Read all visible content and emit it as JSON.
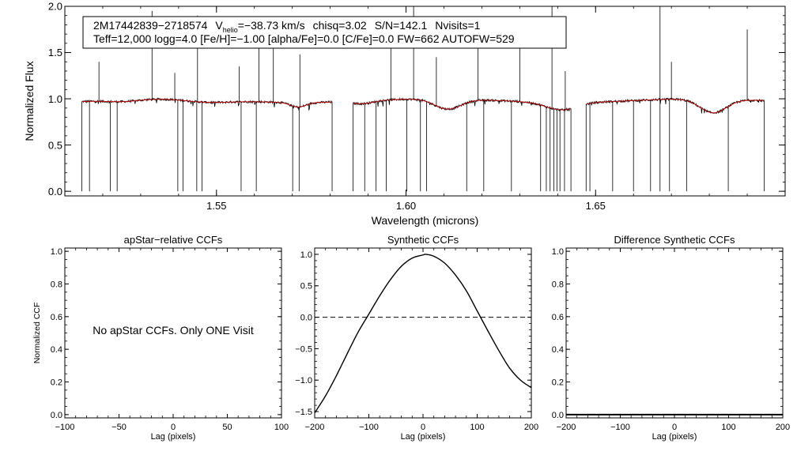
{
  "chart_data": [
    {
      "type": "line",
      "id": "spectrum",
      "ylabel": "Normalized Flux",
      "xlabel": "Wavelength (microns)",
      "xlim": [
        1.51,
        1.7
      ],
      "ylim": [
        -0.05,
        2.0
      ],
      "xticks": [
        1.55,
        1.6,
        1.65
      ],
      "xtick_labels": [
        "1.55",
        "1.60",
        "1.65"
      ],
      "yticks": [
        0.0,
        0.5,
        1.0,
        1.5,
        2.0
      ],
      "ytick_labels": [
        "0.0",
        "0.5",
        "1.0",
        "1.5",
        "2.0"
      ],
      "info": {
        "star_id": "2M17442839−2718574",
        "vhelio_prefix": "V",
        "vhelio_sub": "helio",
        "vhelio_value": "=−38.73 km/s",
        "chisq": "chisq=3.02",
        "snr": "S/N=142.1",
        "nvisits": "Nvisits=1",
        "line2": "Teff=12,000 logg=4.0 [Fe/H]=−1.00 [alpha/Fe]=0.0 [C/Fe]=0.0 FW=662 AUTOFW=529"
      },
      "chips": [
        [
          1.5145,
          1.5805
        ],
        [
          1.586,
          1.6435
        ],
        [
          1.6475,
          1.6945
        ]
      ],
      "series": [
        {
          "name": "observed",
          "color": "#000000",
          "baseline": 0.98,
          "noise": 0.012
        },
        {
          "name": "model",
          "color": "#d00000",
          "baseline": 0.98
        }
      ],
      "broad_features": [
        {
          "center": 1.5255,
          "depth": 0.02,
          "width": 0.004
        },
        {
          "center": 1.5475,
          "depth": 0.03,
          "width": 0.006
        },
        {
          "center": 1.5715,
          "depth": 0.05,
          "width": 0.002
        },
        {
          "center": 1.5885,
          "depth": 0.03,
          "width": 0.003
        },
        {
          "center": 1.611,
          "depth": 0.11,
          "width": 0.0035
        },
        {
          "center": 1.641,
          "depth": 0.08,
          "width": 0.004
        },
        {
          "center": 1.681,
          "depth": 0.15,
          "width": 0.0035
        }
      ],
      "emission_lines": [
        {
          "x": 1.519,
          "peak": 1.4
        },
        {
          "x": 1.533,
          "peak": 1.95
        },
        {
          "x": 1.539,
          "peak": 1.28
        },
        {
          "x": 1.545,
          "peak": 1.9
        },
        {
          "x": 1.556,
          "peak": 1.35
        },
        {
          "x": 1.5612,
          "peak": 1.55
        },
        {
          "x": 1.565,
          "peak": 1.62
        },
        {
          "x": 1.572,
          "peak": 1.48
        },
        {
          "x": 1.596,
          "peak": 1.75
        },
        {
          "x": 1.602,
          "peak": 2.0
        },
        {
          "x": 1.608,
          "peak": 1.45
        },
        {
          "x": 1.619,
          "peak": 1.85
        },
        {
          "x": 1.63,
          "peak": 1.55
        },
        {
          "x": 1.6385,
          "peak": 2.0
        },
        {
          "x": 1.642,
          "peak": 1.3
        },
        {
          "x": 1.667,
          "peak": 2.0
        },
        {
          "x": 1.67,
          "peak": 1.4
        },
        {
          "x": 1.69,
          "peak": 1.75
        }
      ],
      "bad_pixels": [
        1.5165,
        1.522,
        1.5238,
        1.5398,
        1.5412,
        1.5448,
        1.5462,
        1.5565,
        1.5605,
        1.5701,
        1.5718,
        1.5891,
        1.5921,
        1.5948,
        1.6002,
        1.6038,
        1.6054,
        1.616,
        1.6205,
        1.6278,
        1.6355,
        1.637,
        1.638,
        1.639,
        1.6398,
        1.6406,
        1.6418,
        1.6485,
        1.6545,
        1.66,
        1.6645,
        1.667,
        1.6695,
        1.674,
        1.685
      ]
    },
    {
      "type": "line",
      "id": "apstar-ccf",
      "title": "apStar−relative CCFs",
      "ylabel": "Normalized CCF",
      "xlabel": "Lag (pixels)",
      "xlim": [
        -100,
        100
      ],
      "ylim": [
        -0.02,
        1.02
      ],
      "xticks": [
        -100,
        -50,
        0,
        50,
        100
      ],
      "xtick_labels": [
        "−100",
        "−50",
        "0",
        "50",
        "100"
      ],
      "yticks": [
        0.0,
        0.2,
        0.4,
        0.6,
        0.8,
        1.0
      ],
      "ytick_labels": [
        "0.0",
        "0.2",
        "0.4",
        "0.6",
        "0.8",
        "1.0"
      ],
      "message": "No apStar CCFs.  Only ONE Visit",
      "series": []
    },
    {
      "type": "line",
      "id": "synthetic-ccf",
      "title": "Synthetic CCFs",
      "xlabel": "Lag (pixels)",
      "xlim": [
        -200,
        200
      ],
      "ylim": [
        -1.6,
        1.1
      ],
      "xticks": [
        -200,
        -100,
        0,
        100,
        200
      ],
      "xtick_labels": [
        "−200",
        "−100",
        "0",
        "100",
        "200"
      ],
      "yticks": [
        -1.5,
        -1.0,
        -0.5,
        0.0,
        0.5,
        1.0
      ],
      "ytick_labels": [
        "−1.5",
        "−1.0",
        "−0.5",
        "0.0",
        "0.5",
        "1.0"
      ],
      "zero_line": 0.0,
      "series": [
        {
          "name": "ccf",
          "color": "#000000",
          "x": [
            -200,
            -180,
            -160,
            -140,
            -120,
            -100,
            -80,
            -60,
            -40,
            -20,
            0,
            5,
            20,
            40,
            60,
            80,
            100,
            120,
            140,
            160,
            180,
            200
          ],
          "y": [
            -1.52,
            -1.25,
            -0.93,
            -0.58,
            -0.24,
            0.05,
            0.34,
            0.6,
            0.81,
            0.94,
            0.99,
            1.0,
            0.97,
            0.86,
            0.67,
            0.42,
            0.1,
            -0.22,
            -0.53,
            -0.81,
            -1.0,
            -1.12
          ]
        }
      ]
    },
    {
      "type": "line",
      "id": "difference-ccf",
      "title": "Difference Synthetic CCFs",
      "xlabel": "Lag (pixels)",
      "xlim": [
        -200,
        200
      ],
      "ylim": [
        -0.02,
        1.02
      ],
      "xticks": [
        -200,
        -100,
        0,
        100,
        200
      ],
      "xtick_labels": [
        "−200",
        "−100",
        "0",
        "100",
        "200"
      ],
      "yticks": [
        0.0,
        0.2,
        0.4,
        0.6,
        0.8,
        1.0
      ],
      "ytick_labels": [
        "0.0",
        "0.2",
        "0.4",
        "0.6",
        "0.8",
        "1.0"
      ],
      "series": [
        {
          "name": "difference",
          "color": "#000000",
          "x": [
            -200,
            200
          ],
          "y": [
            0.0,
            0.0
          ]
        }
      ]
    }
  ]
}
